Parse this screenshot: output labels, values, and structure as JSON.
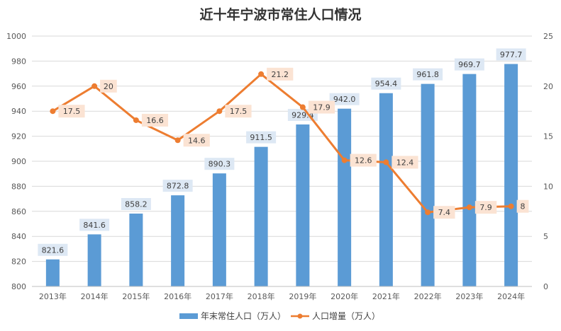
{
  "chart_data": {
    "type": "bar+line",
    "title": "近十年宁波市常住人口情况",
    "categories": [
      "2013年",
      "2014年",
      "2015年",
      "2016年",
      "2017年",
      "2018年",
      "2019年",
      "2020年",
      "2021年",
      "2022年",
      "2023年",
      "2024年"
    ],
    "series": [
      {
        "name": "年末常住人口（万人）",
        "type": "bar",
        "axis": "left",
        "color": "#5b9bd5",
        "values": [
          821.6,
          841.6,
          858.2,
          872.8,
          890.3,
          911.5,
          929.4,
          942.0,
          954.4,
          961.8,
          969.7,
          977.7
        ],
        "labels": [
          "821.6",
          "841.6",
          "858.2",
          "872.8",
          "890.3",
          "911.5",
          "929.4",
          "942.0",
          "954.4",
          "961.8",
          "969.7",
          "977.7"
        ]
      },
      {
        "name": "人口增量（万人）",
        "type": "line",
        "axis": "right",
        "color": "#ed7d31",
        "values": [
          17.5,
          20,
          16.6,
          14.6,
          17.5,
          21.2,
          17.9,
          12.6,
          12.4,
          7.4,
          7.9,
          8
        ],
        "labels": [
          "17.5",
          "20",
          "16.6",
          "14.6",
          "17.5",
          "21.2",
          "17.9",
          "12.6",
          "12.4",
          "7.4",
          "7.9",
          "8"
        ]
      }
    ],
    "y_left": {
      "min": 800,
      "max": 1000,
      "step": 20,
      "ticks": [
        "800",
        "820",
        "840",
        "860",
        "880",
        "900",
        "920",
        "940",
        "960",
        "980",
        "1000"
      ]
    },
    "y_right": {
      "min": 0,
      "max": 25,
      "step": 5,
      "ticks": [
        "0",
        "5",
        "10",
        "15",
        "20",
        "25"
      ]
    },
    "grid": true,
    "legend": "bottom-center"
  }
}
